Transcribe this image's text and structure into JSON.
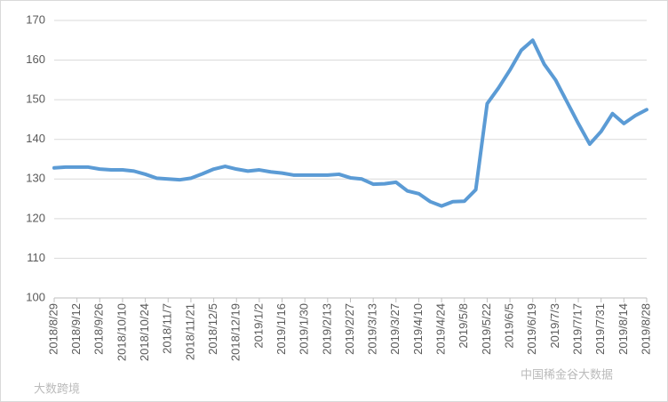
{
  "chart_data": {
    "type": "line",
    "categories": [
      "2018/8/29",
      null,
      "2018/9/12",
      null,
      "2018/9/26",
      null,
      "2018/10/10",
      null,
      "2018/10/24",
      null,
      "2018/11/7",
      null,
      "2018/11/21",
      null,
      "2018/12/5",
      null,
      "2018/12/19",
      null,
      "2019/1/2",
      null,
      "2019/1/16",
      null,
      "2019/1/30",
      null,
      "2019/2/13",
      null,
      "2019/2/27",
      null,
      "2019/3/13",
      null,
      "2019/3/27",
      null,
      "2019/4/10",
      null,
      "2019/4/24",
      null,
      "2019/5/8",
      null,
      "2019/5/22",
      null,
      "2019/6/5",
      null,
      "2019/6/19",
      null,
      "2019/7/3",
      null,
      "2019/7/17",
      null,
      "2019/7/31",
      null,
      "2019/8/14",
      null,
      "2019/8/28"
    ],
    "series": [
      {
        "color": "#5b9bd5",
        "values": [
          132.8,
          133,
          133,
          133,
          132.5,
          132.3,
          132.3,
          132,
          131.2,
          130.2,
          130,
          129.8,
          130.2,
          131.3,
          132.5,
          133.2,
          132.5,
          132,
          132.3,
          131.8,
          131.5,
          131,
          131,
          131,
          131,
          131.2,
          130.3,
          130,
          128.7,
          128.8,
          129.2,
          127,
          126.3,
          124.3,
          123.2,
          124.3,
          124.4,
          127.3,
          149,
          153,
          157.5,
          162.5,
          165,
          159,
          155,
          149.5,
          144,
          138.8,
          142,
          146.5,
          144,
          146,
          147.5
        ]
      }
    ],
    "ylim": [
      100,
      170
    ],
    "yticks": [
      100,
      110,
      120,
      130,
      140,
      150,
      160,
      170
    ],
    "grid": true,
    "watermarks": [
      "大数跨境",
      "中国稀金谷大数据"
    ]
  }
}
